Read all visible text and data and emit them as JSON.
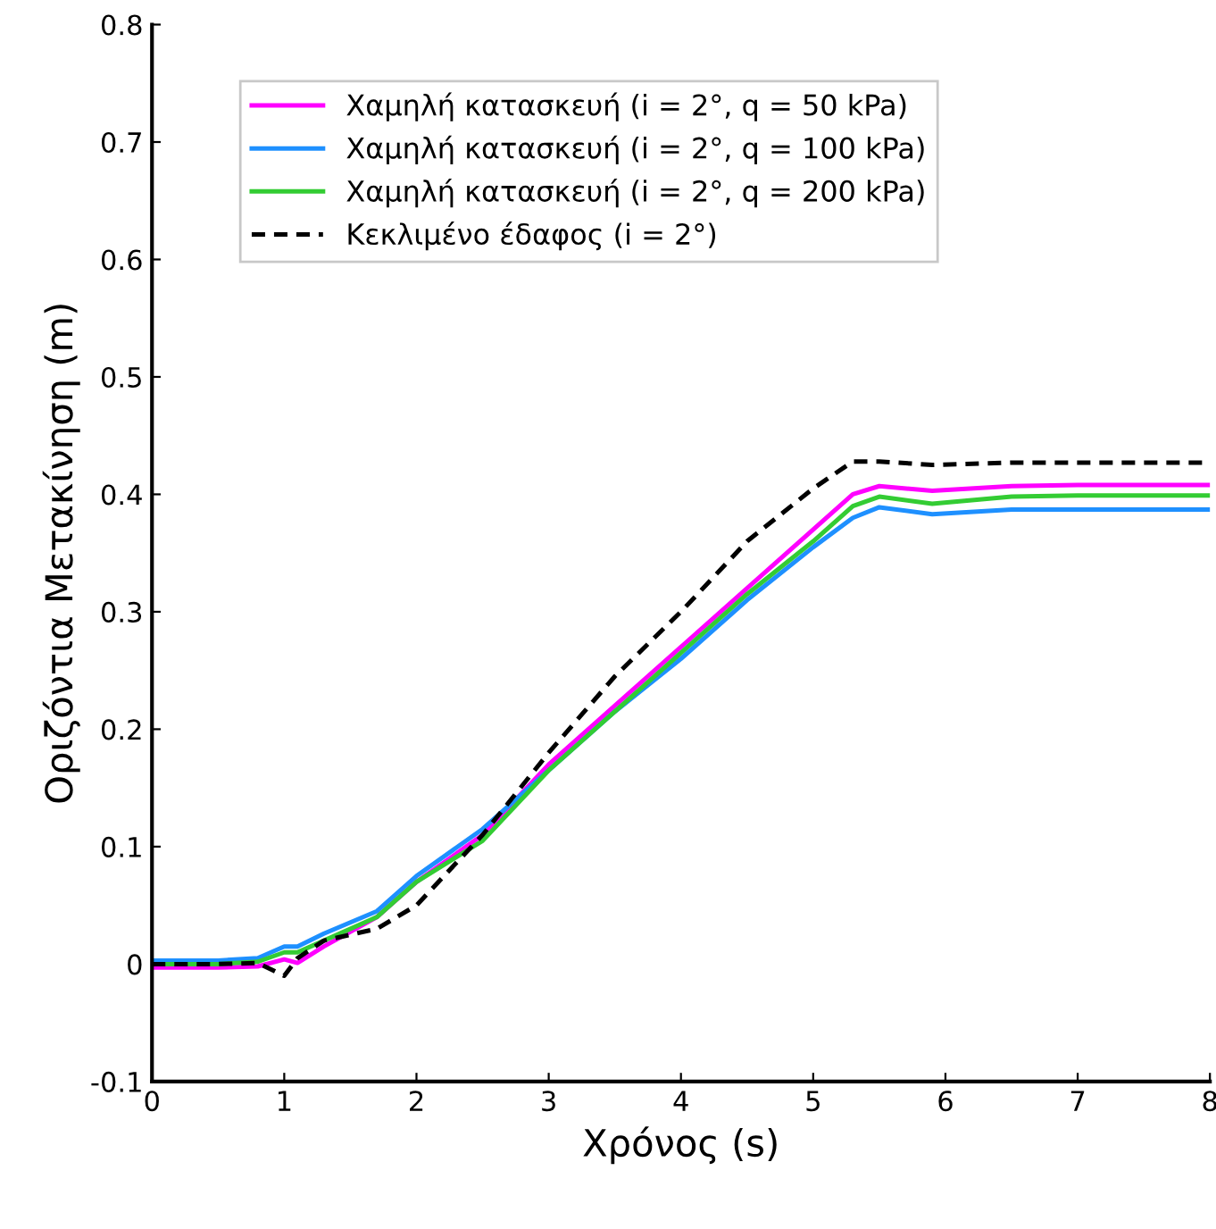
{
  "chart_data": {
    "type": "line",
    "xlabel": "Χρόνος (s)",
    "ylabel": "Οριζόντια Μετακίνηση (m)",
    "xlim": [
      0,
      8
    ],
    "xticks": [
      0,
      1,
      2,
      3,
      4,
      5,
      6,
      7,
      8
    ],
    "ylim": [
      -0.1,
      0.8
    ],
    "yticks": [
      -0.1,
      0,
      0.1,
      0.2,
      0.3,
      0.4,
      0.5,
      0.6,
      0.7,
      0.8
    ],
    "grid": false,
    "legend": "top left",
    "line_style": "solid",
    "marker": "none",
    "x": [
      0,
      0.5,
      0.8,
      1.0,
      1.1,
      1.3,
      1.7,
      2.0,
      2.5,
      3.0,
      3.5,
      4.0,
      4.5,
      5.0,
      5.3,
      5.5,
      5.9,
      6.5,
      7.0,
      8.0
    ],
    "series": [
      {
        "name": "Χαμηλή κατασκευή (i = 2°, q = 50 kPa)",
        "color": "#ff00ff",
        "values": [
          -0.003,
          -0.003,
          -0.002,
          0.004,
          0.001,
          0.015,
          0.04,
          0.07,
          0.11,
          0.17,
          0.22,
          0.27,
          0.32,
          0.37,
          0.4,
          0.407,
          0.403,
          0.407,
          0.408,
          0.408
        ]
      },
      {
        "name": "Χαμηλή κατασκευή (i = 2°, q = 100 kPa)",
        "color": "#1e90ff",
        "values": [
          0.003,
          0.003,
          0.005,
          0.015,
          0.015,
          0.026,
          0.045,
          0.075,
          0.115,
          0.165,
          0.215,
          0.26,
          0.31,
          0.355,
          0.38,
          0.389,
          0.383,
          0.387,
          0.387,
          0.387
        ]
      },
      {
        "name": "Χαμηλή κατασκευή (i = 2°, q = 200 kPa)",
        "color": "#33cc33",
        "values": [
          0,
          0,
          0.002,
          0.01,
          0.01,
          0.02,
          0.04,
          0.07,
          0.105,
          0.165,
          0.215,
          0.265,
          0.315,
          0.36,
          0.39,
          0.398,
          0.392,
          0.398,
          0.399,
          0.399
        ]
      },
      {
        "name": "Κεκλιμένο έδαφος (i = 2°)",
        "color": "#000000",
        "line_style": "dashed",
        "values": [
          0,
          0,
          0.001,
          -0.01,
          0.005,
          0.02,
          0.03,
          0.05,
          0.11,
          0.18,
          0.245,
          0.3,
          0.36,
          0.405,
          0.428,
          0.428,
          0.425,
          0.427,
          0.427,
          0.427
        ]
      }
    ]
  }
}
